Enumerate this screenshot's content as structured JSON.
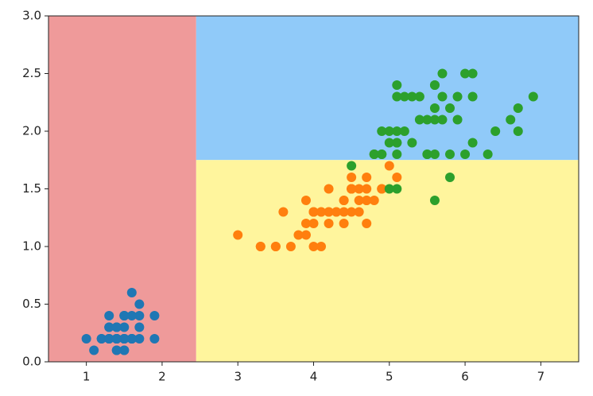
{
  "chart_data": {
    "type": "scatter",
    "xlim": [
      0.5,
      7.5
    ],
    "ylim": [
      0,
      3
    ],
    "xticks": [
      1,
      2,
      3,
      4,
      5,
      6,
      7
    ],
    "yticks": [
      {
        "value": 0,
        "label": "0.0"
      },
      0.5,
      {
        "value": 1,
        "label": "1.0"
      },
      1.5,
      {
        "value": 2,
        "label": "2.0"
      },
      2.5,
      {
        "value": 3,
        "label": "3.0"
      }
    ],
    "regions": [
      {
        "x": [
          0.5,
          2.45
        ],
        "y": [
          0,
          3
        ],
        "color": "#ef9a9a"
      },
      {
        "x": [
          2.45,
          7.5
        ],
        "y": [
          1.75,
          3
        ],
        "color": "#90caf9"
      },
      {
        "x": [
          2.45,
          7.5
        ],
        "y": [
          0,
          1.75
        ],
        "color": "#fff59d"
      }
    ],
    "series": [
      {
        "color": "#1f77b4",
        "x": [
          1.4,
          1.4,
          1.3,
          1.5,
          1.4,
          1.7,
          1.4,
          1.5,
          1.4,
          1.5,
          1.5,
          1.6,
          1.4,
          1.1,
          1.2,
          1.5,
          1.3,
          1.4,
          1.7,
          1.5,
          1.7,
          1.5,
          1.0,
          1.7,
          1.9,
          1.6,
          1.6,
          1.5,
          1.4,
          1.6,
          1.6,
          1.5,
          1.5,
          1.4,
          1.5,
          1.2,
          1.3,
          1.4,
          1.3,
          1.5,
          1.3,
          1.3,
          1.3,
          1.6,
          1.9,
          1.4,
          1.6,
          1.4,
          1.5,
          1.4
        ],
        "values": [
          0.2,
          0.2,
          0.2,
          0.2,
          0.2,
          0.4,
          0.3,
          0.2,
          0.2,
          0.1,
          0.2,
          0.2,
          0.1,
          0.1,
          0.2,
          0.4,
          0.4,
          0.3,
          0.3,
          0.3,
          0.2,
          0.4,
          0.2,
          0.5,
          0.2,
          0.2,
          0.4,
          0.2,
          0.2,
          0.2,
          0.2,
          0.4,
          0.1,
          0.2,
          0.2,
          0.2,
          0.2,
          0.1,
          0.2,
          0.2,
          0.3,
          0.3,
          0.2,
          0.6,
          0.4,
          0.3,
          0.2,
          0.2,
          0.2,
          0.2
        ]
      },
      {
        "color": "#ff7f0e",
        "x": [
          4.7,
          4.5,
          4.9,
          4.0,
          4.6,
          4.5,
          4.7,
          3.3,
          4.6,
          3.9,
          3.5,
          4.2,
          4.0,
          4.7,
          3.6,
          4.4,
          4.5,
          4.1,
          4.5,
          3.9,
          4.8,
          4.0,
          4.9,
          4.7,
          4.3,
          4.4,
          4.8,
          5.0,
          4.5,
          3.5,
          3.8,
          3.7,
          3.9,
          5.1,
          4.5,
          4.5,
          4.7,
          4.4,
          4.1,
          4.0,
          4.4,
          4.6,
          4.0,
          3.3,
          4.2,
          4.2,
          4.2,
          4.3,
          3.0,
          4.1
        ],
        "values": [
          1.4,
          1.5,
          1.5,
          1.3,
          1.5,
          1.3,
          1.6,
          1.0,
          1.3,
          1.4,
          1.0,
          1.5,
          1.0,
          1.4,
          1.3,
          1.4,
          1.5,
          1.0,
          1.5,
          1.1,
          1.8,
          1.3,
          1.5,
          1.2,
          1.3,
          1.4,
          1.4,
          1.7,
          1.5,
          1.0,
          1.1,
          1.0,
          1.2,
          1.6,
          1.5,
          1.6,
          1.5,
          1.3,
          1.3,
          1.3,
          1.2,
          1.4,
          1.2,
          1.0,
          1.3,
          1.2,
          1.3,
          1.3,
          1.1,
          1.3
        ]
      },
      {
        "color": "#2ca02c",
        "x": [
          6.0,
          5.1,
          5.9,
          5.6,
          5.8,
          6.6,
          4.5,
          6.3,
          5.8,
          6.1,
          5.1,
          5.3,
          5.5,
          5.0,
          5.1,
          5.3,
          5.5,
          6.7,
          6.9,
          5.0,
          5.7,
          4.9,
          6.7,
          4.9,
          5.7,
          6.0,
          4.8,
          4.9,
          5.6,
          5.8,
          6.1,
          6.4,
          5.6,
          5.1,
          5.6,
          6.1,
          5.6,
          5.5,
          4.8,
          5.4,
          5.6,
          5.1,
          5.1,
          5.9,
          5.7,
          5.2,
          5.0,
          5.2,
          5.4,
          5.1
        ],
        "values": [
          2.5,
          1.9,
          2.1,
          1.8,
          2.2,
          2.1,
          1.7,
          1.8,
          1.8,
          2.5,
          2.0,
          1.9,
          2.1,
          2.0,
          2.4,
          2.3,
          1.8,
          2.2,
          2.3,
          1.5,
          2.3,
          2.0,
          2.0,
          1.8,
          2.1,
          1.8,
          1.8,
          1.8,
          2.1,
          1.6,
          1.9,
          2.0,
          2.2,
          1.5,
          1.4,
          2.3,
          2.4,
          1.8,
          1.8,
          2.1,
          2.4,
          2.3,
          1.9,
          2.3,
          2.5,
          2.3,
          1.9,
          2.0,
          2.3,
          1.8
        ]
      }
    ]
  }
}
